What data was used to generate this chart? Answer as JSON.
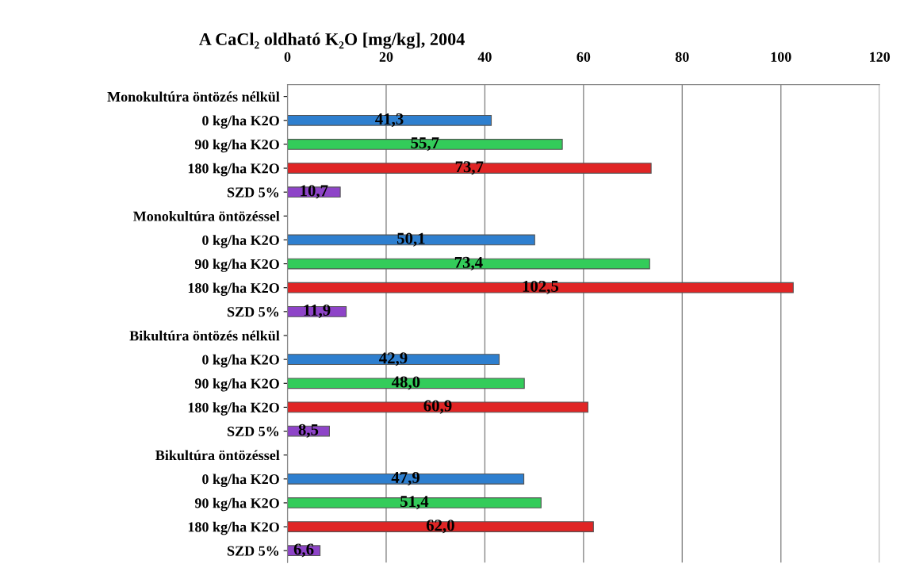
{
  "chart_data": {
    "type": "bar",
    "orientation": "horizontal",
    "title": "A CaCl₂ oldható K₂O [mg/kg], 2004",
    "categories": [
      "Monokultúra öntözés nélkül",
      "0 kg/ha K2O",
      "90 kg/ha K2O",
      "180 kg/ha K2O",
      "SZD 5%",
      "Monokultúra öntözéssel",
      "0 kg/ha K2O",
      "90 kg/ha K2O",
      "180 kg/ha K2O",
      "SZD 5%",
      "Bikultúra öntözés nélkül",
      "0 kg/ha K2O",
      "90 kg/ha K2O",
      "180 kg/ha K2O",
      "SZD 5%",
      "Bikultúra öntözéssel",
      "0 kg/ha K2O",
      "90 kg/ha K2O",
      "180 kg/ha K2O",
      "SZD 5%"
    ],
    "values": [
      null,
      41.3,
      55.7,
      73.7,
      10.7,
      null,
      50.1,
      73.4,
      102.5,
      11.9,
      null,
      42.9,
      48.0,
      60.9,
      8.5,
      null,
      47.9,
      51.4,
      62.0,
      6.6
    ],
    "colors": [
      "#2e7fcf",
      "#2e7fcf",
      "#33cc5a",
      "#e02525",
      "#8e44c8",
      "#2e7fcf",
      "#2e7fcf",
      "#33cc5a",
      "#e02525",
      "#8e44c8",
      "#2e7fcf",
      "#2e7fcf",
      "#33cc5a",
      "#e02525",
      "#8e44c8",
      "#2e7fcf",
      "#2e7fcf",
      "#33cc5a",
      "#e02525",
      "#8e44c8"
    ],
    "value_labels": [
      null,
      "41,3",
      "55,7",
      "73,7",
      "10,7",
      null,
      "50,1",
      "73,4",
      "102,5",
      "11,9",
      null,
      "42,9",
      "48,0",
      "60,9",
      "8,5",
      null,
      "47,9",
      "51,4",
      "62,0",
      "6,6"
    ],
    "xlim": [
      0,
      120
    ],
    "xticks": [
      0,
      20,
      40,
      60,
      80,
      100,
      120
    ],
    "grid": "x",
    "legend": false
  }
}
